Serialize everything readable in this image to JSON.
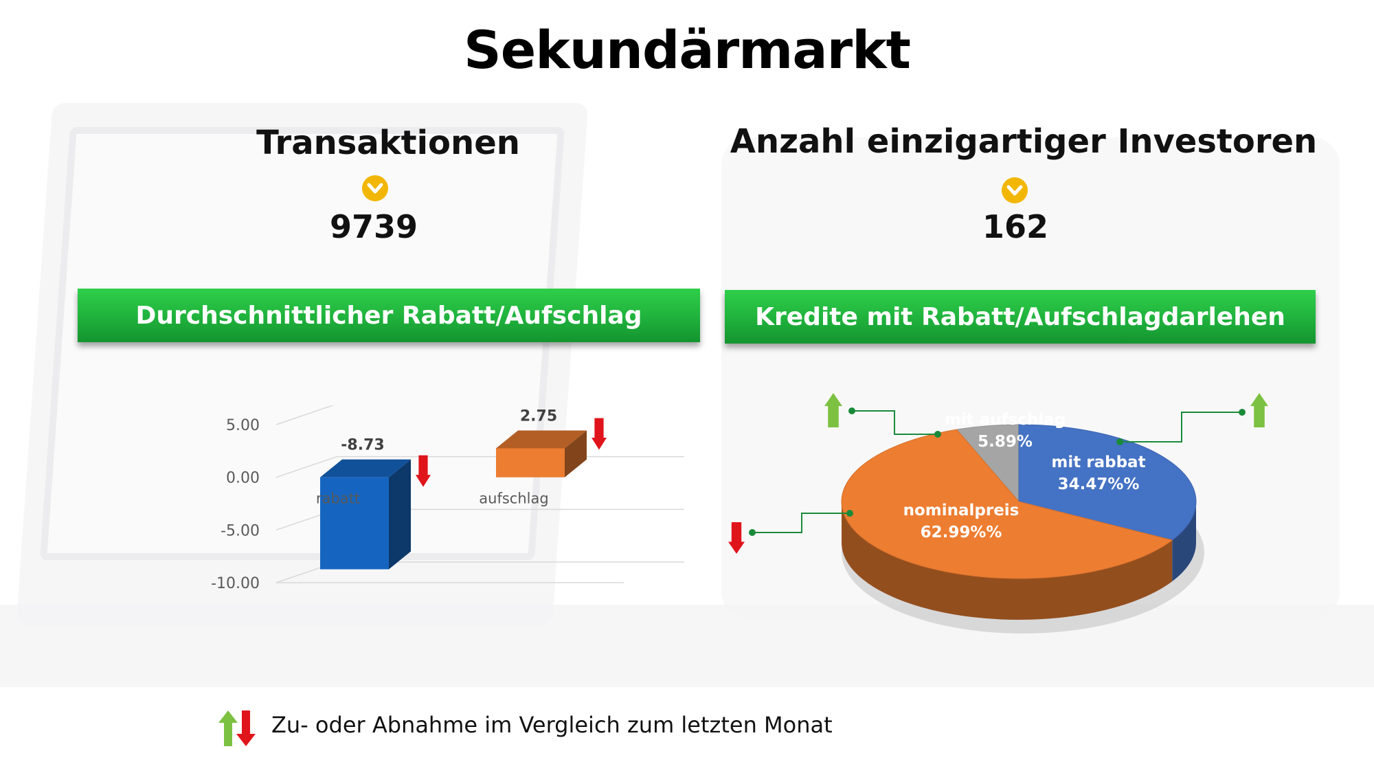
{
  "title": "Sekundärmarkt",
  "kpis": [
    {
      "title": "Transaktionen",
      "value": "9739",
      "icon": "chevron-down-circle-icon"
    },
    {
      "title": "Anzahl einzigartiger Investoren",
      "value": "162",
      "icon": "chevron-down-circle-icon"
    }
  ],
  "banners": {
    "left": "Durchschnittlicher Rabatt/Aufschlag",
    "right": "Kredite mit Rabatt/Aufschlagdarlehen"
  },
  "chart_data": [
    {
      "type": "bar",
      "categories": [
        "rabatt",
        "aufschlag"
      ],
      "values": [
        -8.73,
        2.75
      ],
      "data_labels": [
        "-8.73",
        "2.75"
      ],
      "ylim": [
        -10,
        5
      ],
      "yticks": [
        5,
        0,
        -5,
        -10
      ],
      "ytick_labels": [
        "5.00",
        "0.00",
        "-5.00",
        "-10.00"
      ],
      "colors": [
        "#1565c0",
        "#ed7d31"
      ],
      "trend": [
        "down",
        "down"
      ]
    },
    {
      "type": "pie",
      "slices": [
        {
          "label": "mit aufschlag",
          "value_label": "5.89%",
          "value": 5.89,
          "color": "#a5a5a5",
          "trend": "up"
        },
        {
          "label": "mit rabbat",
          "value_label": "34.47%%",
          "value": 34.47,
          "color": "#4472c4",
          "trend": "up"
        },
        {
          "label": "nominalpreis",
          "value_label": "62.99%%",
          "value": 62.99,
          "color": "#ed7d31",
          "trend": "down"
        }
      ]
    }
  ],
  "footer": {
    "text": "Zu- oder Abnahme im Vergleich zum letzten Monat"
  },
  "colors": {
    "accent_green": "#1fb13c",
    "up_arrow": "#7dc142",
    "down_arrow": "#e0141b",
    "kpi_icon": "#f2b705"
  }
}
